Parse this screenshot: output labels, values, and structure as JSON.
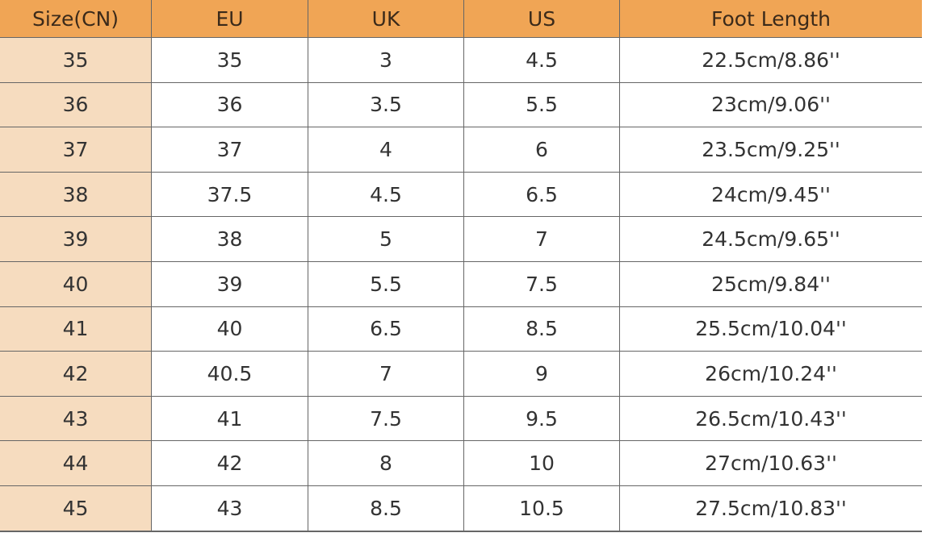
{
  "table": {
    "header": [
      "Size(CN)",
      "EU",
      "UK",
      "US",
      "Foot Length"
    ],
    "rows": [
      [
        "35",
        "35",
        "3",
        "4.5",
        "22.5cm/8.86''"
      ],
      [
        "36",
        "36",
        "3.5",
        "5.5",
        "23cm/9.06''"
      ],
      [
        "37",
        "37",
        "4",
        "6",
        "23.5cm/9.25''"
      ],
      [
        "38",
        "37.5",
        "4.5",
        "6.5",
        "24cm/9.45''"
      ],
      [
        "39",
        "38",
        "5",
        "7",
        "24.5cm/9.65''"
      ],
      [
        "40",
        "39",
        "5.5",
        "7.5",
        "25cm/9.84''"
      ],
      [
        "41",
        "40",
        "6.5",
        "8.5",
        "25.5cm/10.04''"
      ],
      [
        "42",
        "40.5",
        "7",
        "9",
        "26cm/10.24''"
      ],
      [
        "43",
        "41",
        "7.5",
        "9.5",
        "26.5cm/10.43''"
      ],
      [
        "44",
        "42",
        "8",
        "10",
        "27cm/10.63''"
      ],
      [
        "45",
        "43",
        "8.5",
        "10.5",
        "27.5cm/10.83''"
      ]
    ]
  }
}
